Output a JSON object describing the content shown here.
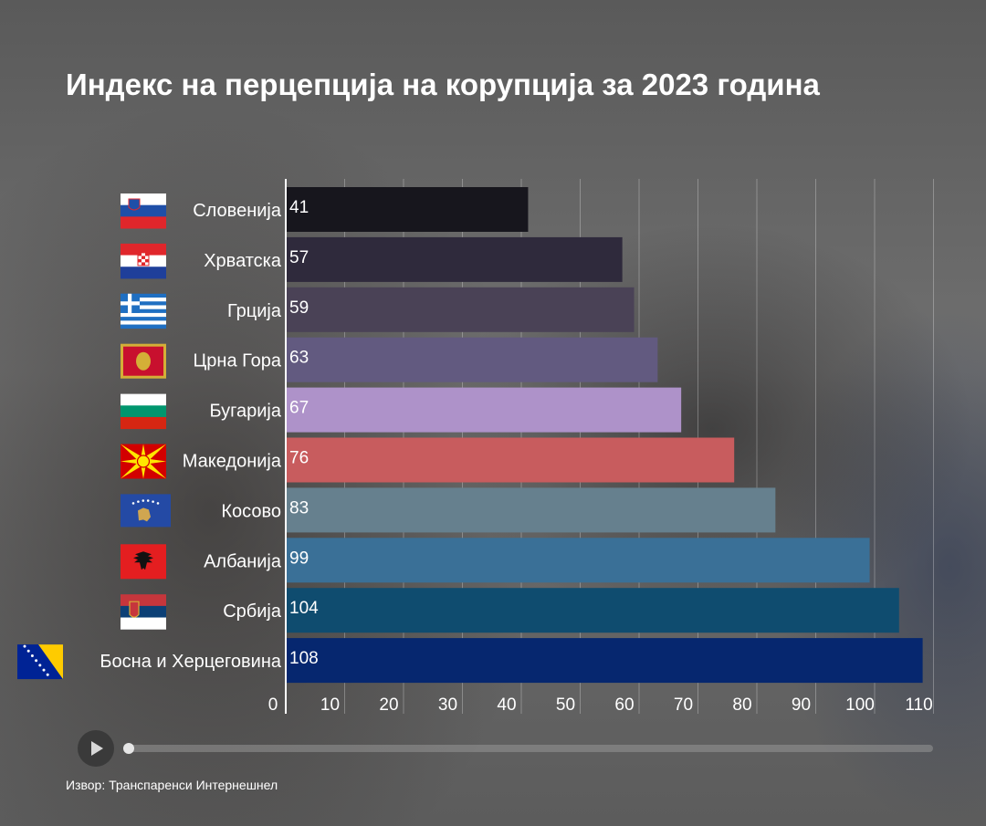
{
  "title": "Индекс на перцепција на корупција за 2023 година",
  "source": "Извор: Транспаренси Интернешнел",
  "chart_data": {
    "type": "bar",
    "orientation": "horizontal",
    "title": "Индекс на перцепција на корупција за 2023 година",
    "categories": [
      "Словенија",
      "Хрватска",
      "Грција",
      "Црна Гора",
      "Бугарија",
      "Македонија",
      "Косово",
      "Албанија",
      "Србија",
      "Босна и Херцеговина"
    ],
    "values": [
      41,
      57,
      59,
      63,
      67,
      76,
      83,
      99,
      104,
      108
    ],
    "value_labels": [
      "41",
      "57",
      "59",
      "63",
      "67",
      "76",
      "83",
      "99",
      "104",
      "108"
    ],
    "bar_colors": [
      "#17161d",
      "#2f2a3c",
      "#4a4256",
      "#625a80",
      "#ae92c9",
      "#c85c5e",
      "#66808e",
      "#3a7097",
      "#0f4c6f",
      "#06276f"
    ],
    "flag_icons": [
      "flag-slovenia",
      "flag-croatia",
      "flag-greece",
      "flag-montenegro",
      "flag-bulgaria",
      "flag-macedonia",
      "flag-kosovo",
      "flag-albania",
      "flag-serbia",
      "flag-bosnia"
    ],
    "x_ticks": [
      "0",
      "10",
      "20",
      "30",
      "40",
      "50",
      "60",
      "70",
      "80",
      "90",
      "100",
      "110"
    ],
    "xlim": [
      0,
      110
    ],
    "grid": true,
    "xlabel": "",
    "ylabel": ""
  }
}
